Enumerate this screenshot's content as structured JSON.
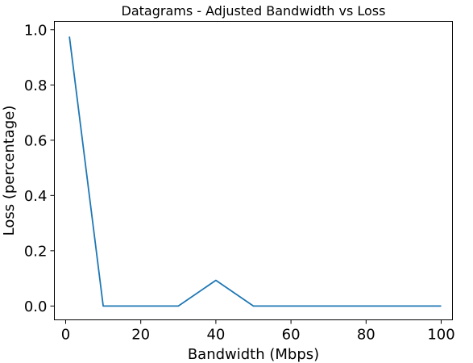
{
  "chart_data": {
    "type": "line",
    "title": "Datagrams - Adjusted Bandwidth vs Loss",
    "xlabel": "Bandwidth (Mbps)",
    "ylabel": "Loss (percentage)",
    "xlim": [
      -3,
      103
    ],
    "ylim": [
      -0.05,
      1.03
    ],
    "xticks": [
      0,
      20,
      40,
      60,
      80,
      100
    ],
    "xtick_labels": [
      "0",
      "20",
      "40",
      "60",
      "80",
      "100"
    ],
    "yticks": [
      0.0,
      0.2,
      0.4,
      0.6,
      0.8,
      1.0
    ],
    "ytick_labels": [
      "0.0",
      "0.2",
      "0.4",
      "0.6",
      "0.8",
      "1.0"
    ],
    "grid": false,
    "series": [
      {
        "color": "#1f77b4",
        "x": [
          1,
          10,
          20,
          30,
          40,
          50,
          60,
          70,
          80,
          90,
          100
        ],
        "y": [
          0.975,
          0.0,
          0.0,
          0.0,
          0.093,
          0.0,
          0.0,
          0.0,
          0.0,
          0.0,
          0.0
        ]
      }
    ]
  }
}
